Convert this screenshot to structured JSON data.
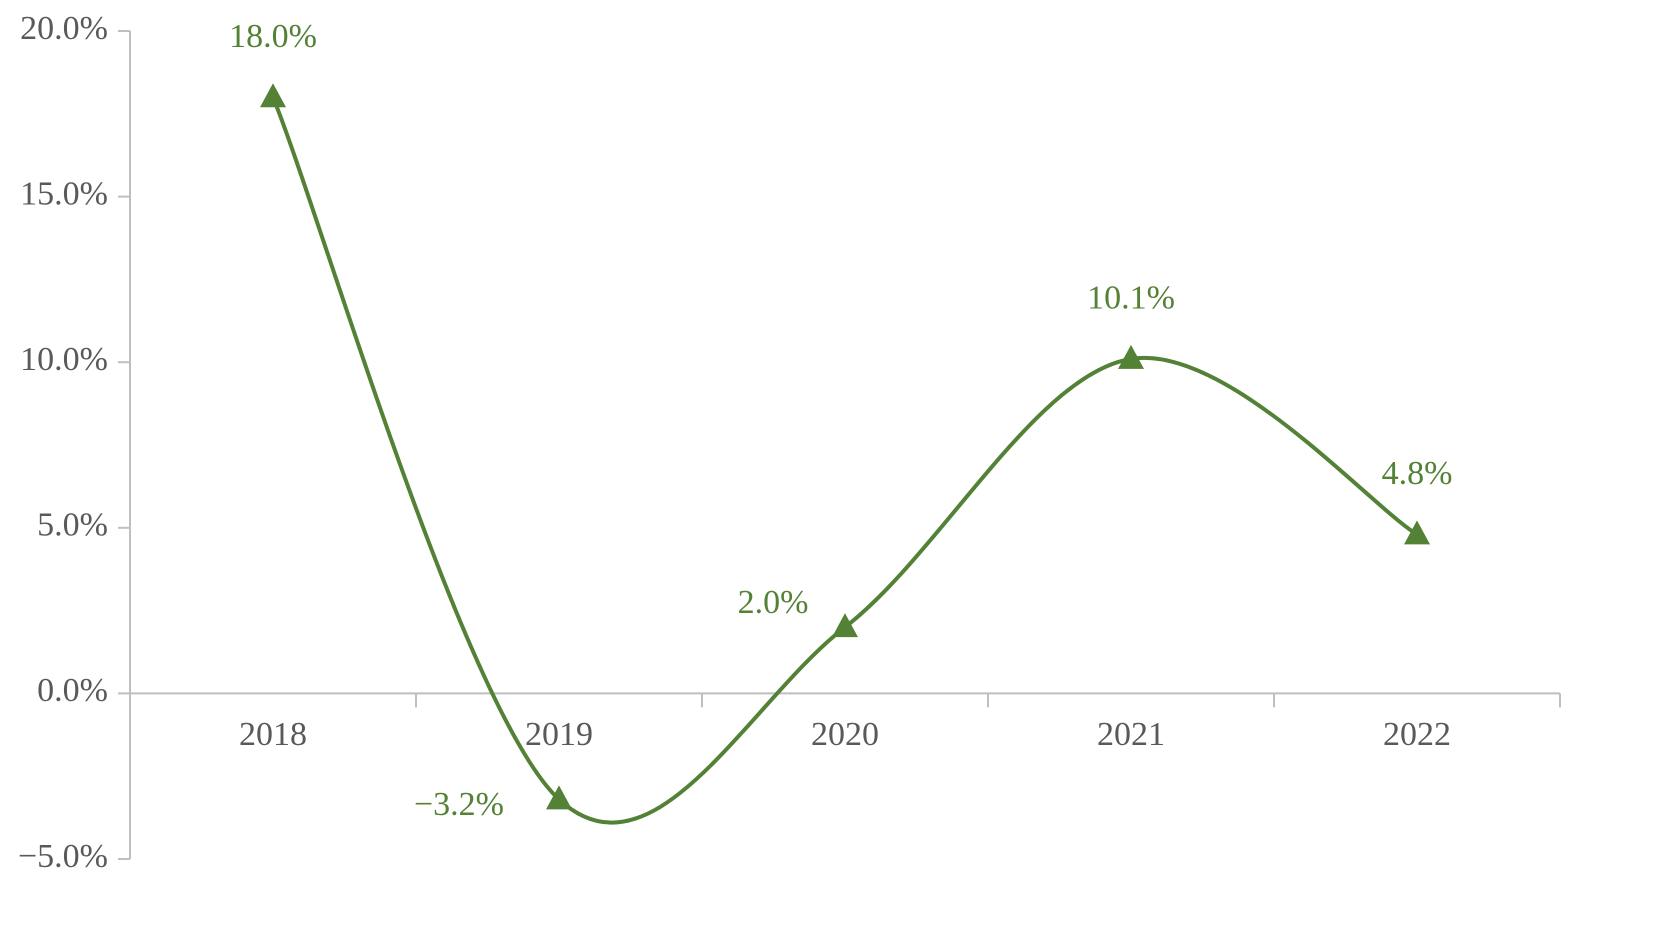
{
  "chart_data": {
    "type": "line",
    "categories": [
      "2018",
      "2019",
      "2020",
      "2021",
      "2022"
    ],
    "series": [
      {
        "color": "#538135",
        "values": [
          18.0,
          -3.2,
          2.0,
          10.1,
          4.8
        ],
        "value_labels": [
          "18.0%",
          "−3.2%",
          "2.0%",
          "10.1%",
          "4.8%"
        ]
      }
    ],
    "ylim": [
      -5,
      20
    ],
    "yticks": [
      {
        "value": -5,
        "label": "−5.0%"
      },
      {
        "value": 0,
        "label": "0.0%"
      },
      {
        "value": 5,
        "label": "5.0%"
      },
      {
        "value": 10,
        "label": "10.0%"
      },
      {
        "value": 15,
        "label": "15.0%"
      },
      {
        "value": 20,
        "label": "20.0%"
      }
    ],
    "smooth": true,
    "marker": "triangle"
  }
}
